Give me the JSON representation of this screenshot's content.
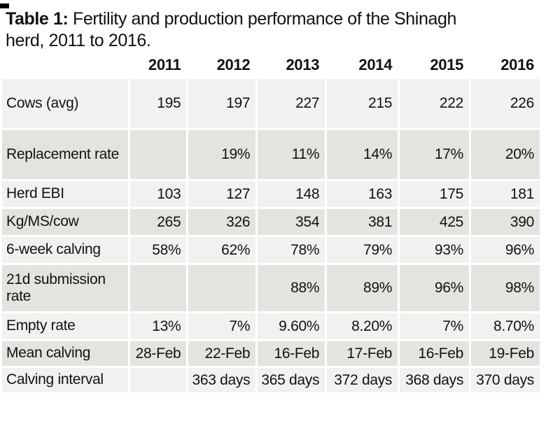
{
  "caption": {
    "label": "Table 1:",
    "line1": "Fertility and production performance of the Shinagh",
    "line2": "herd, 2011 to 2016."
  },
  "table": {
    "columns": [
      "2011",
      "2012",
      "2013",
      "2014",
      "2015",
      "2016"
    ],
    "rows": [
      {
        "label": "Cows (avg)",
        "values": [
          "195",
          "197",
          "227",
          "215",
          "222",
          "226"
        ]
      },
      {
        "label": "Replacement rate",
        "values": [
          "",
          "19%",
          "11%",
          "14%",
          "17%",
          "20%"
        ]
      },
      {
        "label": "Herd EBI",
        "values": [
          "103",
          "127",
          "148",
          "163",
          "175",
          "181"
        ]
      },
      {
        "label": "Kg/MS/cow",
        "values": [
          "265",
          "326",
          "354",
          "381",
          "425",
          "390"
        ]
      },
      {
        "label": "6-week calving",
        "values": [
          "58%",
          "62%",
          "78%",
          "79%",
          "93%",
          "96%"
        ]
      },
      {
        "label": "21d submission rate",
        "values": [
          "",
          "",
          "88%",
          "89%",
          "96%",
          "98%"
        ]
      },
      {
        "label": "Empty rate",
        "values": [
          "13%",
          "7%",
          "9.60%",
          "8.20%",
          "7%",
          "8.70%"
        ]
      },
      {
        "label": "Mean calving",
        "values": [
          "28-Feb",
          "22-Feb",
          "16-Feb",
          "17-Feb",
          "16-Feb",
          "19-Feb"
        ]
      },
      {
        "label": "Calving interval",
        "values": [
          "",
          "363 days",
          "365 days",
          "372 days",
          "368 days",
          "370 days"
        ]
      }
    ]
  },
  "colors": {
    "row_light": "#f1f1ef",
    "row_dark": "#e3e3df",
    "text": "#121212",
    "background": "#ffffff",
    "mark": "#000000"
  }
}
